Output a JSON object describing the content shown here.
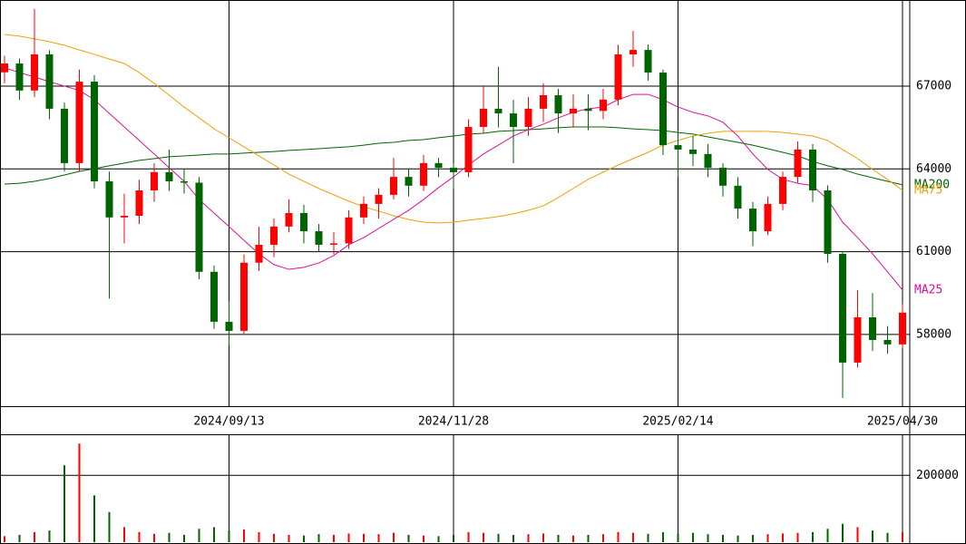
{
  "chart_data": {
    "type": "candlestick",
    "categories": [
      null,
      null,
      null,
      null,
      null,
      null,
      null,
      null,
      null,
      null,
      null,
      null,
      null,
      null,
      null,
      "2024/09/13",
      null,
      null,
      null,
      null,
      null,
      null,
      null,
      null,
      null,
      null,
      null,
      null,
      null,
      null,
      "2024/11/28",
      null,
      null,
      null,
      null,
      null,
      null,
      null,
      null,
      null,
      null,
      null,
      null,
      null,
      null,
      "2025/02/14",
      null,
      null,
      null,
      null,
      null,
      null,
      null,
      null,
      null,
      null,
      null,
      null,
      null,
      null,
      "2025/04/30"
    ],
    "candles": [
      [
        67500,
        68100,
        67100,
        67820
      ],
      [
        67820,
        68000,
        66500,
        66840
      ],
      [
        66840,
        69800,
        66600,
        68150
      ],
      [
        68150,
        68300,
        65800,
        66180
      ],
      [
        66180,
        66400,
        63900,
        64210
      ],
      [
        64210,
        67600,
        63900,
        67160
      ],
      [
        67160,
        67400,
        63300,
        63550
      ],
      [
        63550,
        63900,
        59300,
        62240
      ],
      [
        62240,
        63100,
        61300,
        62300
      ],
      [
        62300,
        63600,
        62000,
        63220
      ],
      [
        63220,
        64200,
        62800,
        63880
      ],
      [
        63880,
        64700,
        63200,
        63550
      ],
      [
        63550,
        64000,
        63100,
        63500
      ],
      [
        63500,
        63700,
        60000,
        60270
      ],
      [
        60270,
        60500,
        58200,
        58460
      ],
      [
        58460,
        59200,
        57600,
        58130
      ],
      [
        58130,
        60900,
        58000,
        60600
      ],
      [
        60600,
        61900,
        60300,
        61250
      ],
      [
        61250,
        62200,
        60800,
        61910
      ],
      [
        61910,
        62900,
        61700,
        62400
      ],
      [
        62400,
        62700,
        61300,
        61740
      ],
      [
        61740,
        62000,
        61000,
        61250
      ],
      [
        61250,
        61700,
        60900,
        61300
      ],
      [
        61300,
        62500,
        61100,
        62240
      ],
      [
        62240,
        63000,
        62000,
        62730
      ],
      [
        62730,
        63300,
        62200,
        63060
      ],
      [
        63060,
        64400,
        62900,
        63710
      ],
      [
        63710,
        64000,
        63000,
        63390
      ],
      [
        63390,
        64500,
        63200,
        64210
      ],
      [
        64210,
        64400,
        63700,
        64040
      ],
      [
        64040,
        64200,
        63300,
        63880
      ],
      [
        63880,
        65800,
        63700,
        65520
      ],
      [
        65520,
        67000,
        65300,
        66180
      ],
      [
        66180,
        67700,
        65500,
        66010
      ],
      [
        66010,
        66500,
        64200,
        65520
      ],
      [
        65520,
        66600,
        65200,
        66180
      ],
      [
        66180,
        67100,
        65700,
        66670
      ],
      [
        66670,
        66900,
        65300,
        66010
      ],
      [
        66010,
        66700,
        65500,
        66180
      ],
      [
        66180,
        66700,
        65400,
        66100
      ],
      [
        66100,
        66900,
        65800,
        66510
      ],
      [
        66510,
        68500,
        66300,
        68150
      ],
      [
        68150,
        69000,
        67700,
        68310
      ],
      [
        68310,
        68500,
        67200,
        67490
      ],
      [
        67490,
        67600,
        64500,
        64860
      ],
      [
        64860,
        65400,
        63700,
        64700
      ],
      [
        64700,
        65200,
        64100,
        64540
      ],
      [
        64540,
        64900,
        63700,
        64040
      ],
      [
        64040,
        64200,
        63000,
        63390
      ],
      [
        63390,
        63700,
        62200,
        62560
      ],
      [
        62560,
        62800,
        61200,
        61740
      ],
      [
        61740,
        63000,
        61600,
        62730
      ],
      [
        62730,
        63900,
        62500,
        63710
      ],
      [
        63710,
        65000,
        63500,
        64700
      ],
      [
        64700,
        64900,
        62800,
        63220
      ],
      [
        63220,
        63400,
        60600,
        60920
      ],
      [
        60920,
        61000,
        55700,
        56980
      ],
      [
        56980,
        59600,
        56800,
        58620
      ],
      [
        58620,
        59500,
        57400,
        57800
      ],
      [
        57800,
        58300,
        57300,
        57640
      ],
      [
        57640,
        59100,
        57500,
        58790
      ]
    ],
    "up_color": "#ff0000",
    "down_color": "#006400",
    "series": [
      {
        "name": "MA200",
        "color": "#006400",
        "values": [
          63450,
          63480,
          63550,
          63650,
          63780,
          63910,
          64010,
          64110,
          64210,
          64310,
          64370,
          64440,
          64470,
          64500,
          64540,
          64540,
          64570,
          64600,
          64630,
          64670,
          64700,
          64730,
          64770,
          64800,
          64860,
          64930,
          64960,
          65030,
          65060,
          65130,
          65190,
          65260,
          65290,
          65360,
          65390,
          65420,
          65450,
          65490,
          65520,
          65520,
          65520,
          65490,
          65450,
          65420,
          65390,
          65320,
          65260,
          65160,
          65060,
          64960,
          64860,
          64730,
          64600,
          64470,
          64270,
          64110,
          63980,
          63810,
          63680,
          63550,
          63420
        ]
      },
      {
        "name": "MA75",
        "color": "#f0a000",
        "values": [
          68870,
          68810,
          68710,
          68610,
          68480,
          68310,
          68150,
          67980,
          67820,
          67490,
          67100,
          66670,
          66240,
          65850,
          65450,
          65130,
          64800,
          64470,
          64140,
          63810,
          63550,
          63290,
          63060,
          62830,
          62630,
          62470,
          62300,
          62170,
          62070,
          62040,
          62070,
          62140,
          62200,
          62270,
          62370,
          62500,
          62660,
          62960,
          63290,
          63620,
          63880,
          64140,
          64370,
          64600,
          64860,
          65030,
          65190,
          65290,
          65360,
          65360,
          65360,
          65360,
          65320,
          65260,
          65190,
          65030,
          64700,
          64370,
          63980,
          63620,
          63220
        ]
      },
      {
        "name": "MA25",
        "color": "#e0109a",
        "values": [
          67660,
          67490,
          67330,
          67160,
          67000,
          66840,
          66510,
          66010,
          65520,
          65030,
          64540,
          64040,
          63550,
          62890,
          62400,
          61910,
          61410,
          60920,
          60530,
          60360,
          60430,
          60590,
          60860,
          61250,
          61510,
          61840,
          62170,
          62500,
          62890,
          63320,
          63710,
          64140,
          64540,
          64860,
          65190,
          65420,
          65620,
          65850,
          66050,
          66180,
          66240,
          66510,
          66700,
          66700,
          66510,
          66240,
          66050,
          65920,
          65690,
          65190,
          64540,
          63980,
          63620,
          63480,
          63390,
          62890,
          62070,
          61510,
          60920,
          60270,
          59610
        ]
      }
    ],
    "ylim": [
      55400,
      70120
    ],
    "yticks": [
      58000,
      61000,
      64000,
      67000
    ],
    "grid": true,
    "volume": {
      "values": [
        18000,
        22000,
        30000,
        35000,
        230000,
        295000,
        140000,
        90000,
        45000,
        30000,
        25000,
        28000,
        22000,
        40000,
        45000,
        35000,
        38000,
        30000,
        25000,
        22000,
        20000,
        24000,
        22000,
        26000,
        25000,
        24000,
        28000,
        22000,
        20000,
        18000,
        22000,
        30000,
        28000,
        25000,
        22000,
        24000,
        26000,
        22000,
        20000,
        22000,
        24000,
        30000,
        28000,
        25000,
        30000,
        26000,
        28000,
        24000,
        22000,
        20000,
        22000,
        24000,
        26000,
        28000,
        30000,
        40000,
        55000,
        45000,
        35000,
        28000,
        30000
      ],
      "ylim": [
        0,
        320000
      ],
      "yticks": [
        200000
      ]
    }
  }
}
